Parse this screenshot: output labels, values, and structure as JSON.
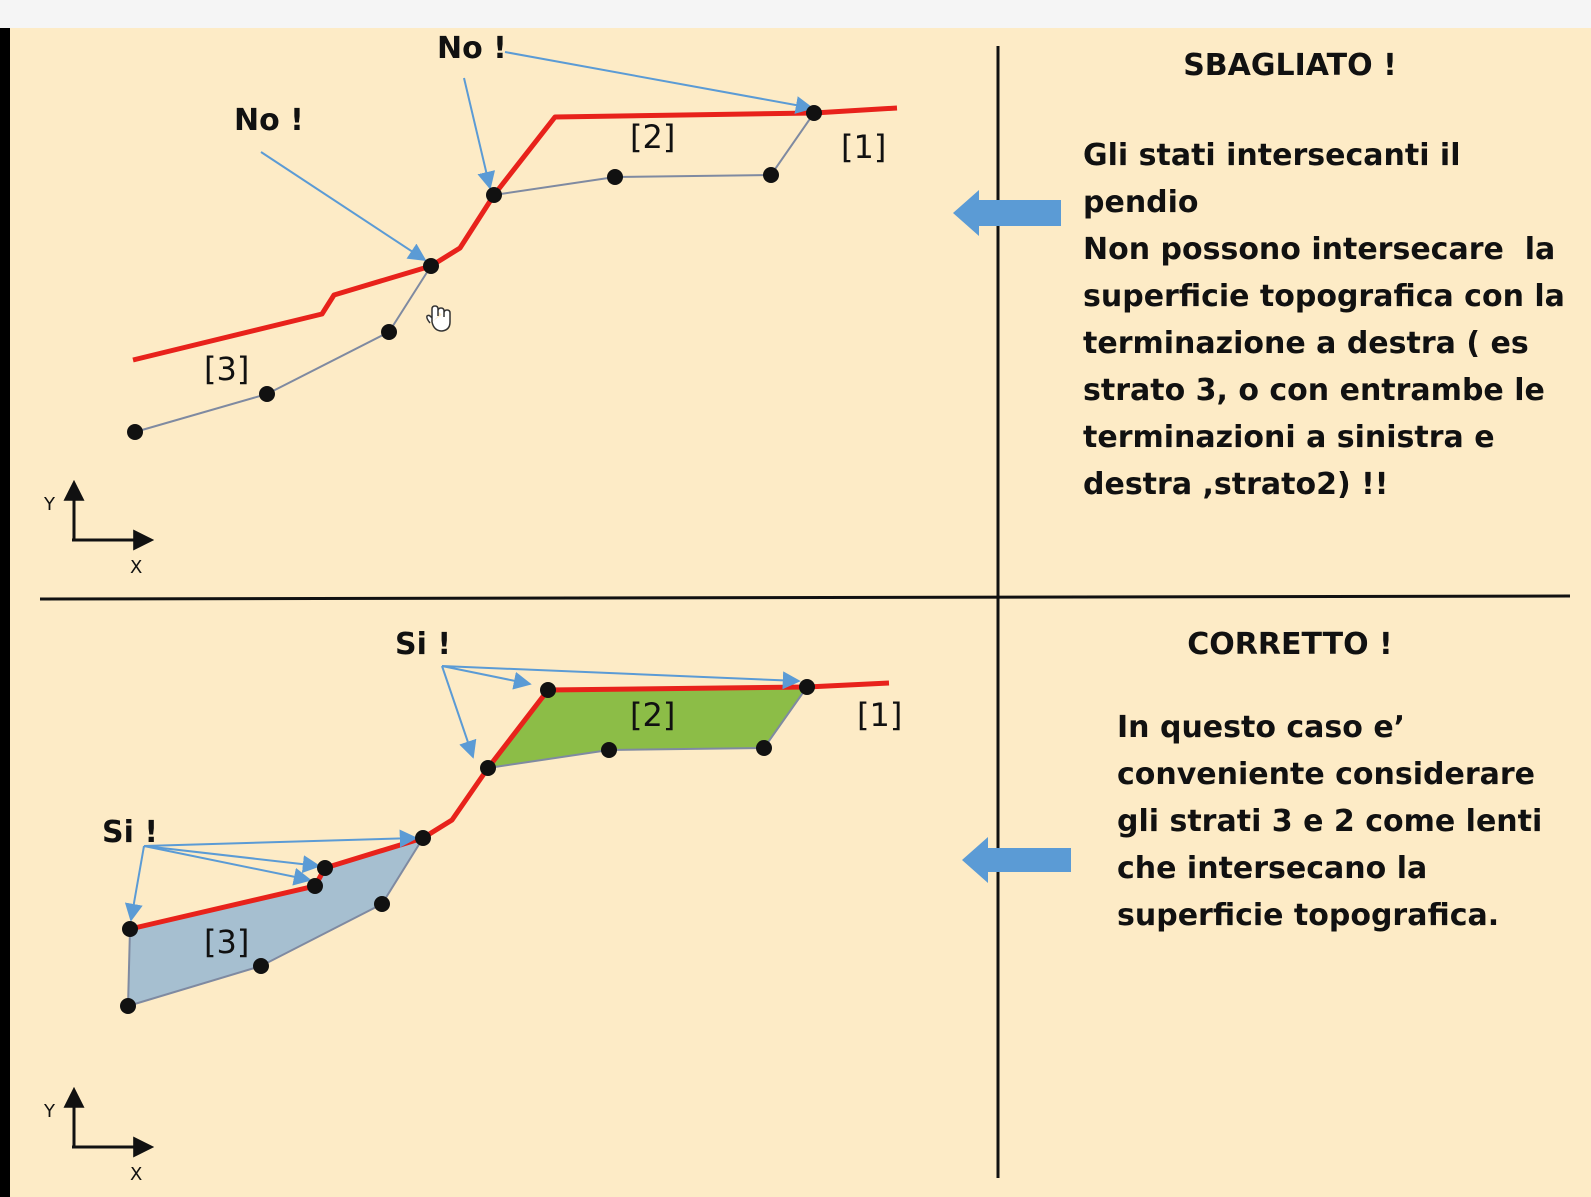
{
  "top_panel": {
    "heading": "SBAGLIATO !",
    "callouts": [
      "No !",
      "No !"
    ],
    "strata_labels": [
      "[1]",
      "[2]",
      "[3]"
    ],
    "explanation_lines": [
      "Gli stati intersecanti il",
      "pendio",
      "Non possono intersecare  la",
      "superficie topografica con la",
      "terminazione a destra ( es",
      "strato 3, o con entrambe le",
      "terminazioni a sinistra e",
      "destra ,strato2) !!"
    ],
    "axis_labels": {
      "y": "Y",
      "x": "X"
    }
  },
  "bottom_panel": {
    "heading": "CORRETTO !",
    "callouts": [
      "Si !",
      "Si !"
    ],
    "strata_labels": [
      "[1]",
      "[2]",
      "[3]"
    ],
    "explanation_lines": [
      "In questo caso e’",
      "conveniente considerare",
      "gli strati 3 e 2 come lenti",
      "che intersecano la",
      "superficie topografica."
    ],
    "axis_labels": {
      "y": "Y",
      "x": "X"
    }
  },
  "colors": {
    "background": "#fdebc6",
    "topographic_surface": "#e8221b",
    "stratum_boundary": "#7f8aa1",
    "pointer_arrow": "#5b9bd5",
    "block_arrow": "#5b9bd5",
    "stratum_2_fill": "#8cbd47",
    "stratum_3_fill": "#a6bfd0",
    "vertex": "#111111"
  }
}
